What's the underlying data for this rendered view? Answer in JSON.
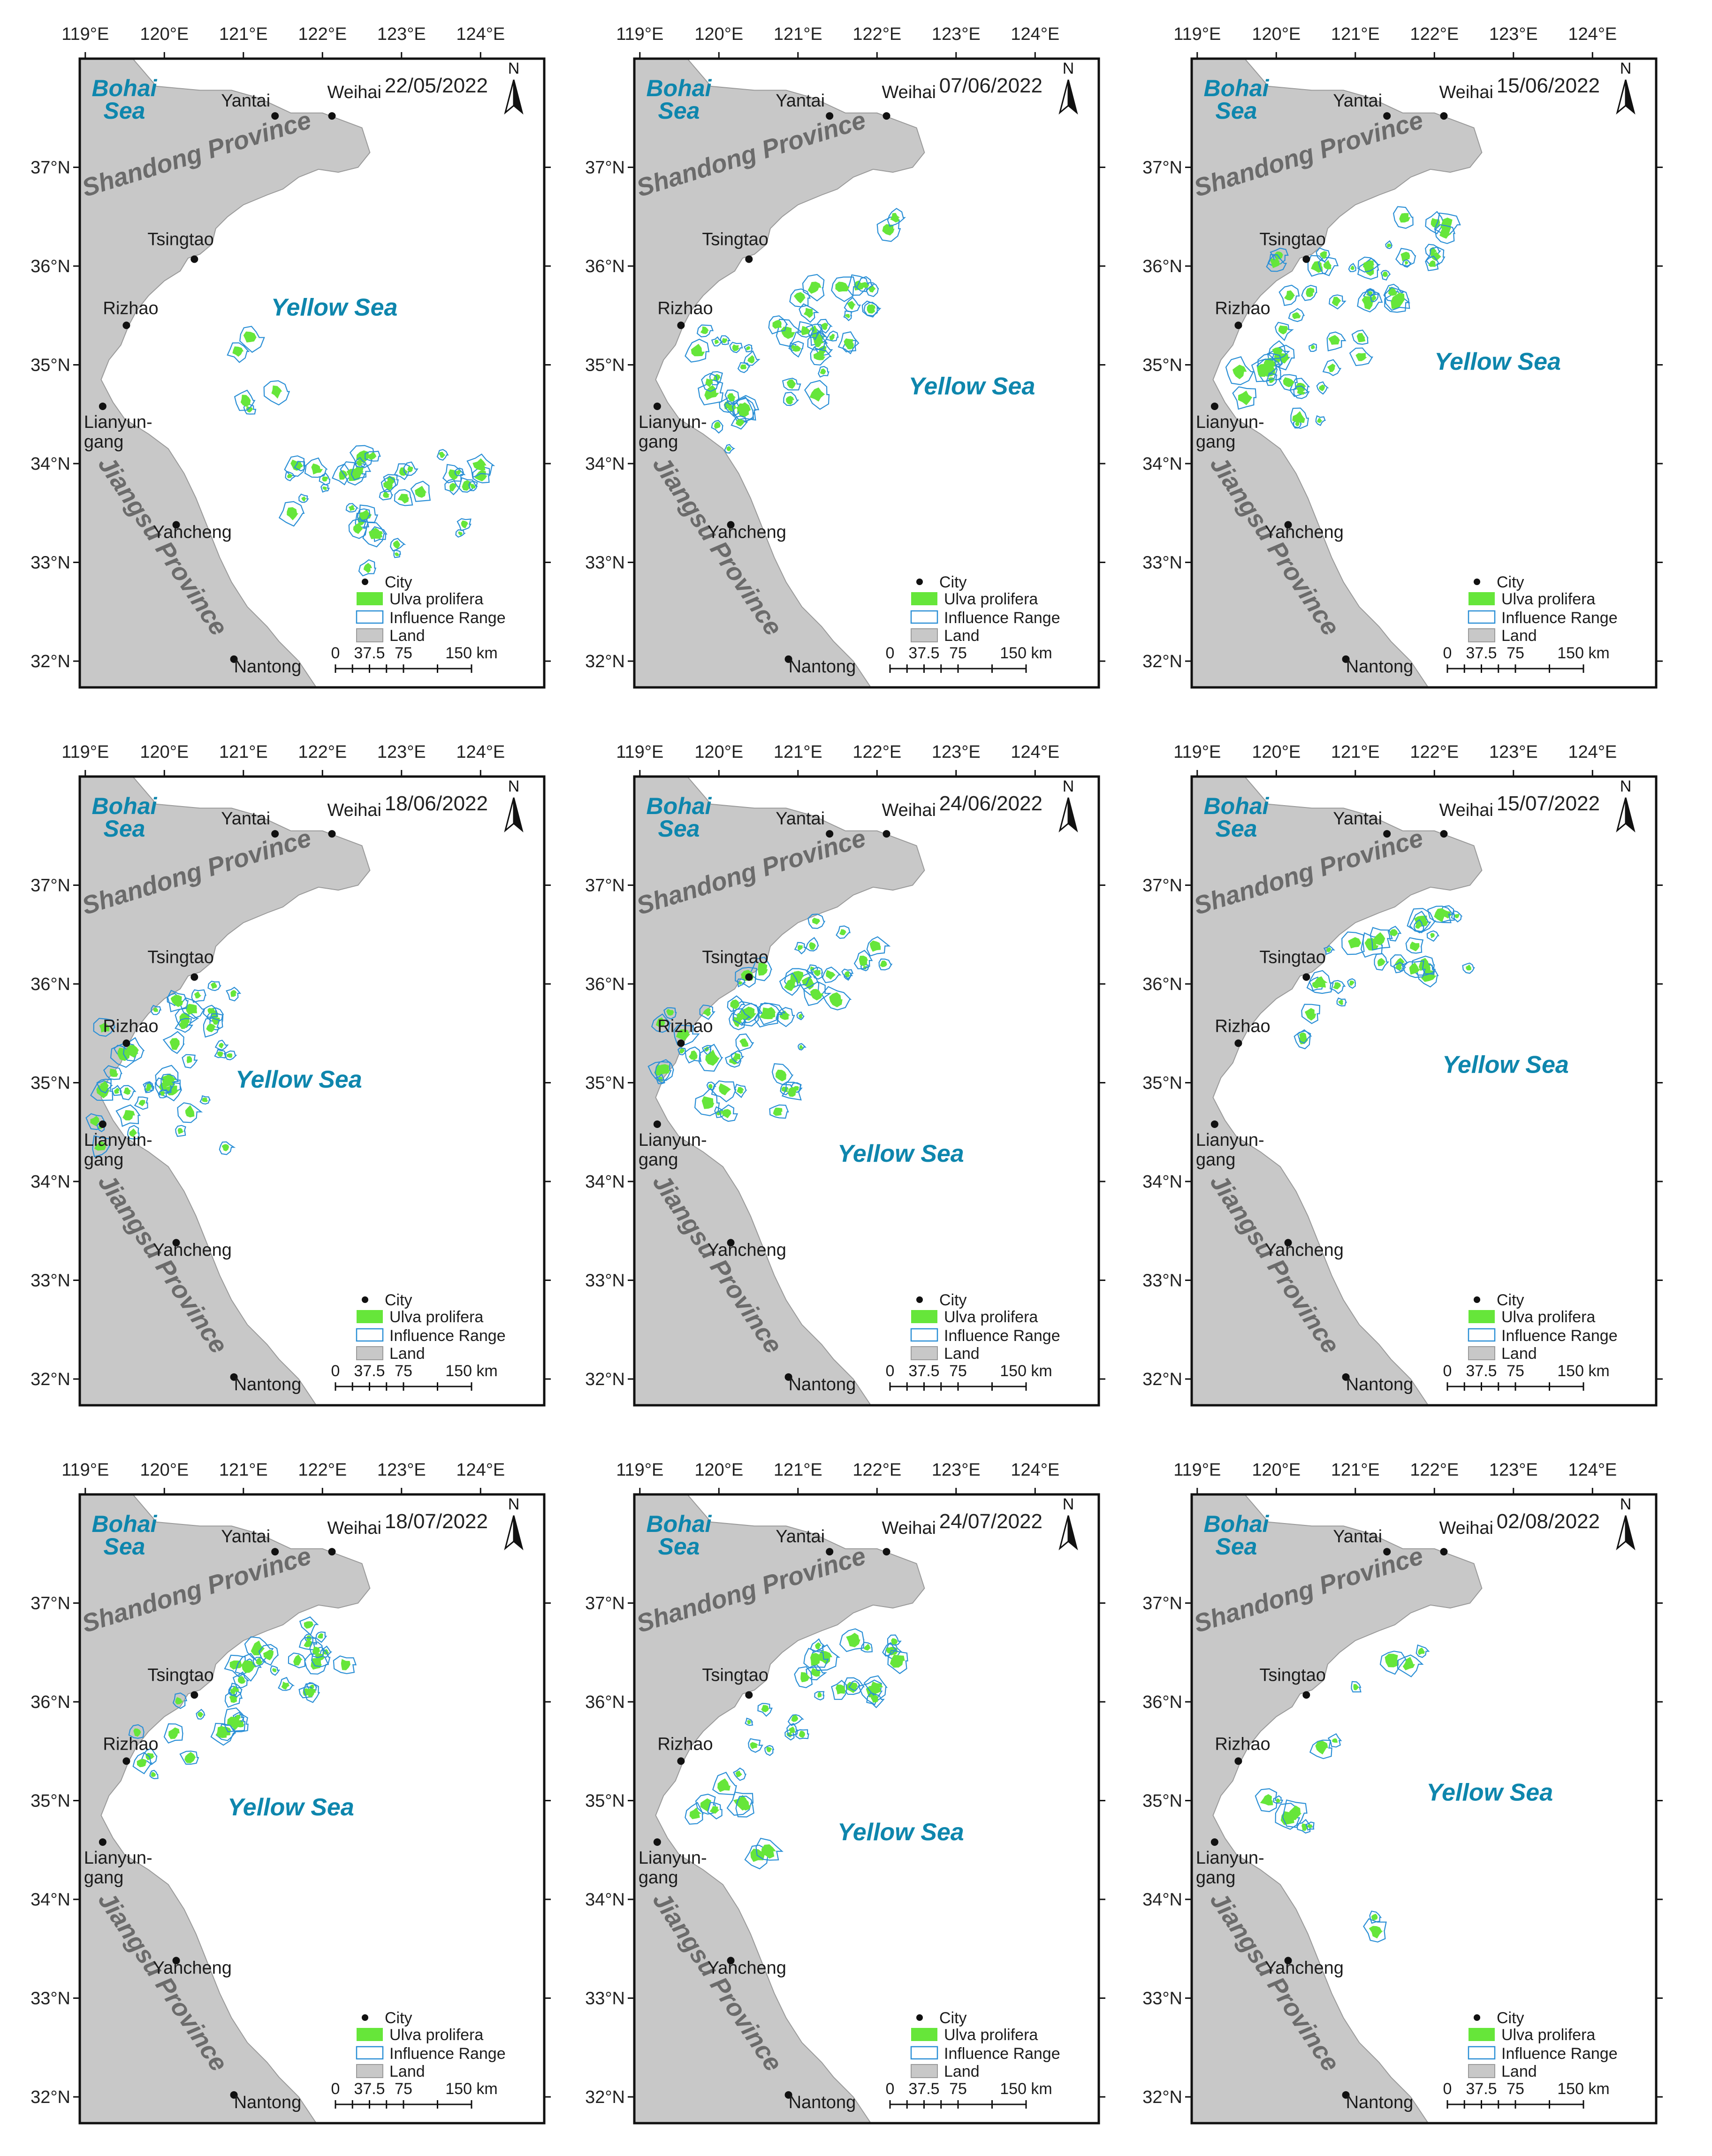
{
  "figure": {
    "colors": {
      "land": "#c8c8c8",
      "land_stroke": "#9a9a9a",
      "sea": "#ffffff",
      "ulva": "#66e63a",
      "influence": "#2a8fd6",
      "sea_label": "#0e86ad",
      "province_label": "#6b6b6b",
      "frame": "#111111"
    },
    "axes": {
      "lon_ticks": [
        "119°E",
        "120°E",
        "121°E",
        "122°E",
        "123°E",
        "124°E"
      ],
      "lat_ticks": [
        "37°N",
        "36°N",
        "35°N",
        "34°N",
        "33°N",
        "32°N"
      ]
    },
    "map_labels": {
      "bohai_line1": "Bohai",
      "bohai_line2": "Sea",
      "shandong": "Shandong Province",
      "jiangsu": "Jiangsu Province",
      "yellow_sea": "Yellow Sea",
      "north": "N"
    },
    "cities": [
      "Weihai",
      "Yantai",
      "Tsingtao",
      "Rizhao",
      "Lianyun-gang",
      "Yancheng",
      "Nantong"
    ],
    "legend": {
      "city": "City",
      "ulva": "Ulva prolifera",
      "influence": "Influence Range",
      "land": "Land"
    },
    "scale_bar": {
      "labels": [
        "0",
        "37.5",
        "75",
        "150 km"
      ]
    },
    "panels": [
      {
        "date": "22/05/2022",
        "bloom_region": "offshore central Yellow Sea, 33–35°N, 121–124°E"
      },
      {
        "date": "07/06/2022",
        "bloom_region": "off Lianyungang–Rizhao extending NE to 35.8°N"
      },
      {
        "date": "15/06/2022",
        "bloom_region": "off Rizhao, 34.5–36.5°N"
      },
      {
        "date": "18/06/2022",
        "bloom_region": "nearshore Rizhao–Lianyungang"
      },
      {
        "date": "24/06/2022",
        "bloom_region": "Rizhao to Weihai coast"
      },
      {
        "date": "15/07/2022",
        "bloom_region": "Tsingtao–Yantai coast"
      },
      {
        "date": "18/07/2022",
        "bloom_region": "Rizhao–Weihai coast"
      },
      {
        "date": "24/07/2022",
        "bloom_region": "Rizhao–Yantai coast"
      },
      {
        "date": "02/08/2022",
        "bloom_region": "scattered patches, Rizhao & Yancheng"
      }
    ]
  }
}
